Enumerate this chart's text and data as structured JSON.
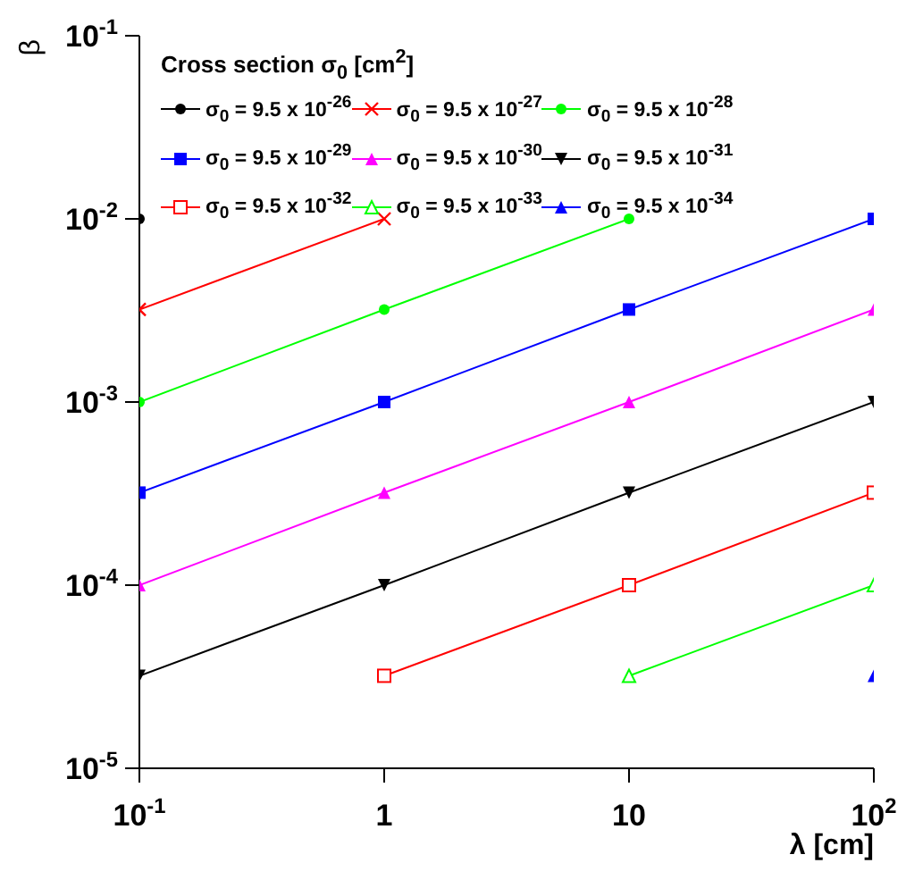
{
  "chart_data": {
    "type": "line",
    "xlabel": "λ [cm]",
    "ylabel": "β",
    "legend_title": "Cross section σ$_{0}$ [cm$^{2}$]",
    "log": "xy",
    "grid": false,
    "legend": "top left",
    "xlim": [
      0.1,
      100
    ],
    "xticks": [
      {
        "value": 0.1,
        "label": "10$^{-1}$"
      },
      1,
      10,
      {
        "value": 100,
        "label": "10$^{2}$"
      }
    ],
    "ylim": [
      1e-05,
      0.1
    ],
    "yticks": [
      {
        "value": 1e-05,
        "label": "10$^{-5}$"
      },
      {
        "value": 0.0001,
        "label": "10$^{-4}$"
      },
      {
        "value": 0.001,
        "label": "10$^{-3}$"
      },
      {
        "value": 0.01,
        "label": "10$^{-2}$"
      },
      {
        "value": 0.1,
        "label": "10$^{-1}$"
      }
    ],
    "series": [
      {
        "name": "σ$_{0}$ = 9.5 x 10$^{-26}$",
        "color": "#000000",
        "marker": "circle",
        "x": [
          0.1
        ],
        "values": [
          0.01
        ]
      },
      {
        "name": "σ$_{0}$ = 9.5 x 10$^{-27}$",
        "color": "#ff0000",
        "marker": "cross",
        "x": [
          0.1,
          1
        ],
        "values": [
          0.0032,
          0.01
        ]
      },
      {
        "name": "σ$_{0}$ = 9.5 x 10$^{-28}$",
        "color": "#00ff00",
        "marker": "circle",
        "x": [
          0.1,
          1,
          10
        ],
        "values": [
          0.001,
          0.0032,
          0.01
        ]
      },
      {
        "name": "σ$_{0}$ = 9.5 x 10$^{-29}$",
        "color": "#0000ff",
        "marker": "square",
        "x": [
          0.1,
          1,
          10,
          100
        ],
        "values": [
          0.00032,
          0.001,
          0.0032,
          0.01
        ]
      },
      {
        "name": "σ$_{0}$ = 9.5 x 10$^{-30}$",
        "color": "#ff00ff",
        "marker": "triangle",
        "x": [
          0.1,
          1,
          10,
          100
        ],
        "values": [
          0.0001,
          0.00032,
          0.001,
          0.0032
        ]
      },
      {
        "name": "σ$_{0}$ = 9.5 x 10$^{-31}$",
        "color": "#000000",
        "marker": "triangle-down",
        "x": [
          0.1,
          1,
          10,
          100
        ],
        "values": [
          3.2e-05,
          0.0001,
          0.00032,
          0.001
        ]
      },
      {
        "name": "σ$_{0}$ = 9.5 x 10$^{-32}$",
        "color": "#ff0000",
        "marker": "square-open",
        "x": [
          1,
          10,
          100
        ],
        "values": [
          3.2e-05,
          0.0001,
          0.00032
        ]
      },
      {
        "name": "σ$_{0}$ = 9.5 x 10$^{-33}$",
        "color": "#00ff00",
        "marker": "triangle-open",
        "x": [
          10,
          100
        ],
        "values": [
          3.2e-05,
          0.0001
        ]
      },
      {
        "name": "σ$_{0}$ = 9.5 x 10$^{-34}$",
        "color": "#0000ff",
        "marker": "triangle",
        "x": [
          100
        ],
        "values": [
          3.2e-05
        ]
      }
    ]
  }
}
